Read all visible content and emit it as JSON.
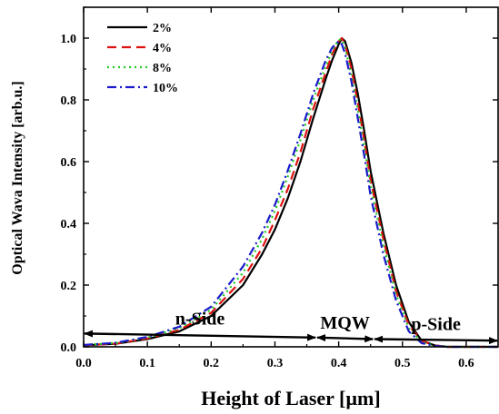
{
  "chart_data": {
    "type": "line",
    "xlabel": "Height of Laser [µm]",
    "ylabel": "Optical Wava Intensity [arb.u.]",
    "xlim": [
      0.0,
      0.65
    ],
    "ylim": [
      0.0,
      1.1
    ],
    "xticks": [
      "0.0",
      "0.1",
      "0.2",
      "0.3",
      "0.4",
      "0.5",
      "0.6"
    ],
    "yticks": [
      "0.0",
      "0.2",
      "0.4",
      "0.6",
      "0.8",
      "1.0"
    ],
    "legend_position": "top-left",
    "series": [
      {
        "name": "2%",
        "color": "#000000",
        "dash": "solid",
        "x": [
          0.0,
          0.05,
          0.1,
          0.15,
          0.2,
          0.25,
          0.28,
          0.3,
          0.32,
          0.34,
          0.36,
          0.38,
          0.39,
          0.4,
          0.405,
          0.41,
          0.42,
          0.43,
          0.44,
          0.45,
          0.47,
          0.49,
          0.51,
          0.53,
          0.55,
          0.57,
          0.6,
          0.65
        ],
        "y": [
          0.005,
          0.01,
          0.025,
          0.05,
          0.1,
          0.2,
          0.3,
          0.38,
          0.48,
          0.6,
          0.74,
          0.87,
          0.93,
          0.98,
          1.0,
          0.99,
          0.92,
          0.82,
          0.7,
          0.57,
          0.37,
          0.2,
          0.08,
          0.02,
          0.005,
          0.0,
          0.0,
          0.0
        ]
      },
      {
        "name": "4%",
        "color": "#dd1111",
        "dash": "dashed",
        "x": [
          0.0,
          0.05,
          0.1,
          0.15,
          0.2,
          0.25,
          0.28,
          0.3,
          0.32,
          0.34,
          0.36,
          0.38,
          0.39,
          0.4,
          0.405,
          0.41,
          0.42,
          0.43,
          0.44,
          0.45,
          0.47,
          0.49,
          0.51,
          0.53,
          0.55,
          0.57,
          0.6,
          0.65
        ],
        "y": [
          0.005,
          0.01,
          0.027,
          0.055,
          0.11,
          0.22,
          0.32,
          0.41,
          0.51,
          0.63,
          0.77,
          0.89,
          0.95,
          0.99,
          1.0,
          0.98,
          0.9,
          0.79,
          0.67,
          0.54,
          0.35,
          0.18,
          0.07,
          0.02,
          0.005,
          0.0,
          0.0,
          0.0
        ]
      },
      {
        "name": "8%",
        "color": "#22cc22",
        "dash": "dotted",
        "x": [
          0.0,
          0.05,
          0.1,
          0.15,
          0.2,
          0.25,
          0.28,
          0.3,
          0.32,
          0.34,
          0.36,
          0.38,
          0.39,
          0.4,
          0.405,
          0.41,
          0.42,
          0.43,
          0.44,
          0.45,
          0.47,
          0.49,
          0.51,
          0.53,
          0.55,
          0.57,
          0.6,
          0.65
        ],
        "y": [
          0.006,
          0.012,
          0.03,
          0.06,
          0.12,
          0.24,
          0.35,
          0.44,
          0.55,
          0.67,
          0.8,
          0.91,
          0.96,
          0.995,
          0.995,
          0.97,
          0.88,
          0.77,
          0.65,
          0.52,
          0.33,
          0.17,
          0.06,
          0.015,
          0.004,
          0.0,
          0.0,
          0.0
        ]
      },
      {
        "name": "10%",
        "color": "#1a1acc",
        "dash": "dashdot",
        "x": [
          0.0,
          0.05,
          0.1,
          0.15,
          0.2,
          0.25,
          0.28,
          0.3,
          0.32,
          0.34,
          0.36,
          0.38,
          0.39,
          0.4,
          0.405,
          0.41,
          0.42,
          0.43,
          0.44,
          0.45,
          0.47,
          0.49,
          0.51,
          0.53,
          0.55,
          0.57,
          0.6,
          0.65
        ],
        "y": [
          0.006,
          0.013,
          0.032,
          0.065,
          0.13,
          0.26,
          0.37,
          0.46,
          0.57,
          0.69,
          0.82,
          0.93,
          0.97,
          0.99,
          0.98,
          0.95,
          0.86,
          0.74,
          0.62,
          0.49,
          0.3,
          0.15,
          0.05,
          0.012,
          0.003,
          0.0,
          0.0,
          0.0
        ]
      }
    ],
    "regions": [
      {
        "label": "n-Side",
        "from": 0.0,
        "to": 0.365,
        "y_start": 0.043,
        "y_end": 0.03
      },
      {
        "label": "MQW",
        "from": 0.365,
        "to": 0.455,
        "y_start": 0.03,
        "y_end": 0.025
      },
      {
        "label": "p-Side",
        "from": 0.455,
        "to": 0.65,
        "y_start": 0.025,
        "y_end": 0.02
      }
    ]
  }
}
